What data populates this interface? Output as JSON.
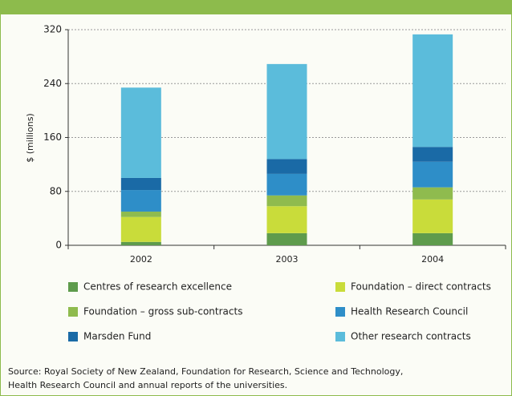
{
  "chart_data": {
    "type": "stacked_bar",
    "y_label": "$ (millions)",
    "categories": [
      "2002",
      "2003",
      "2004"
    ],
    "series": [
      {
        "name": "Centres of research excellence",
        "color": "#5e9b4c",
        "values": [
          5,
          18,
          18
        ]
      },
      {
        "name": "Foundation – direct contracts",
        "color": "#c9dc3a",
        "values": [
          37,
          40,
          50
        ]
      },
      {
        "name": "Foundation – gross sub-contracts",
        "color": "#8fbb4e",
        "values": [
          8,
          16,
          18
        ]
      },
      {
        "name": "Health Research Council",
        "color": "#2e8ec8",
        "values": [
          32,
          32,
          38
        ]
      },
      {
        "name": "Marsden Fund",
        "color": "#1a6aa6",
        "values": [
          18,
          22,
          22
        ]
      },
      {
        "name": "Other research contracts",
        "color": "#5bbcdb",
        "values": [
          134,
          141,
          167
        ]
      }
    ],
    "ylim": [
      0,
      320
    ],
    "yticks": [
      0,
      80,
      160,
      240,
      320
    ],
    "grid": true,
    "source": [
      "Source: Royal Society of New Zealand, Foundation for Research, Science and Technology,",
      "Health Research Council and annual reports of the universities."
    ]
  }
}
